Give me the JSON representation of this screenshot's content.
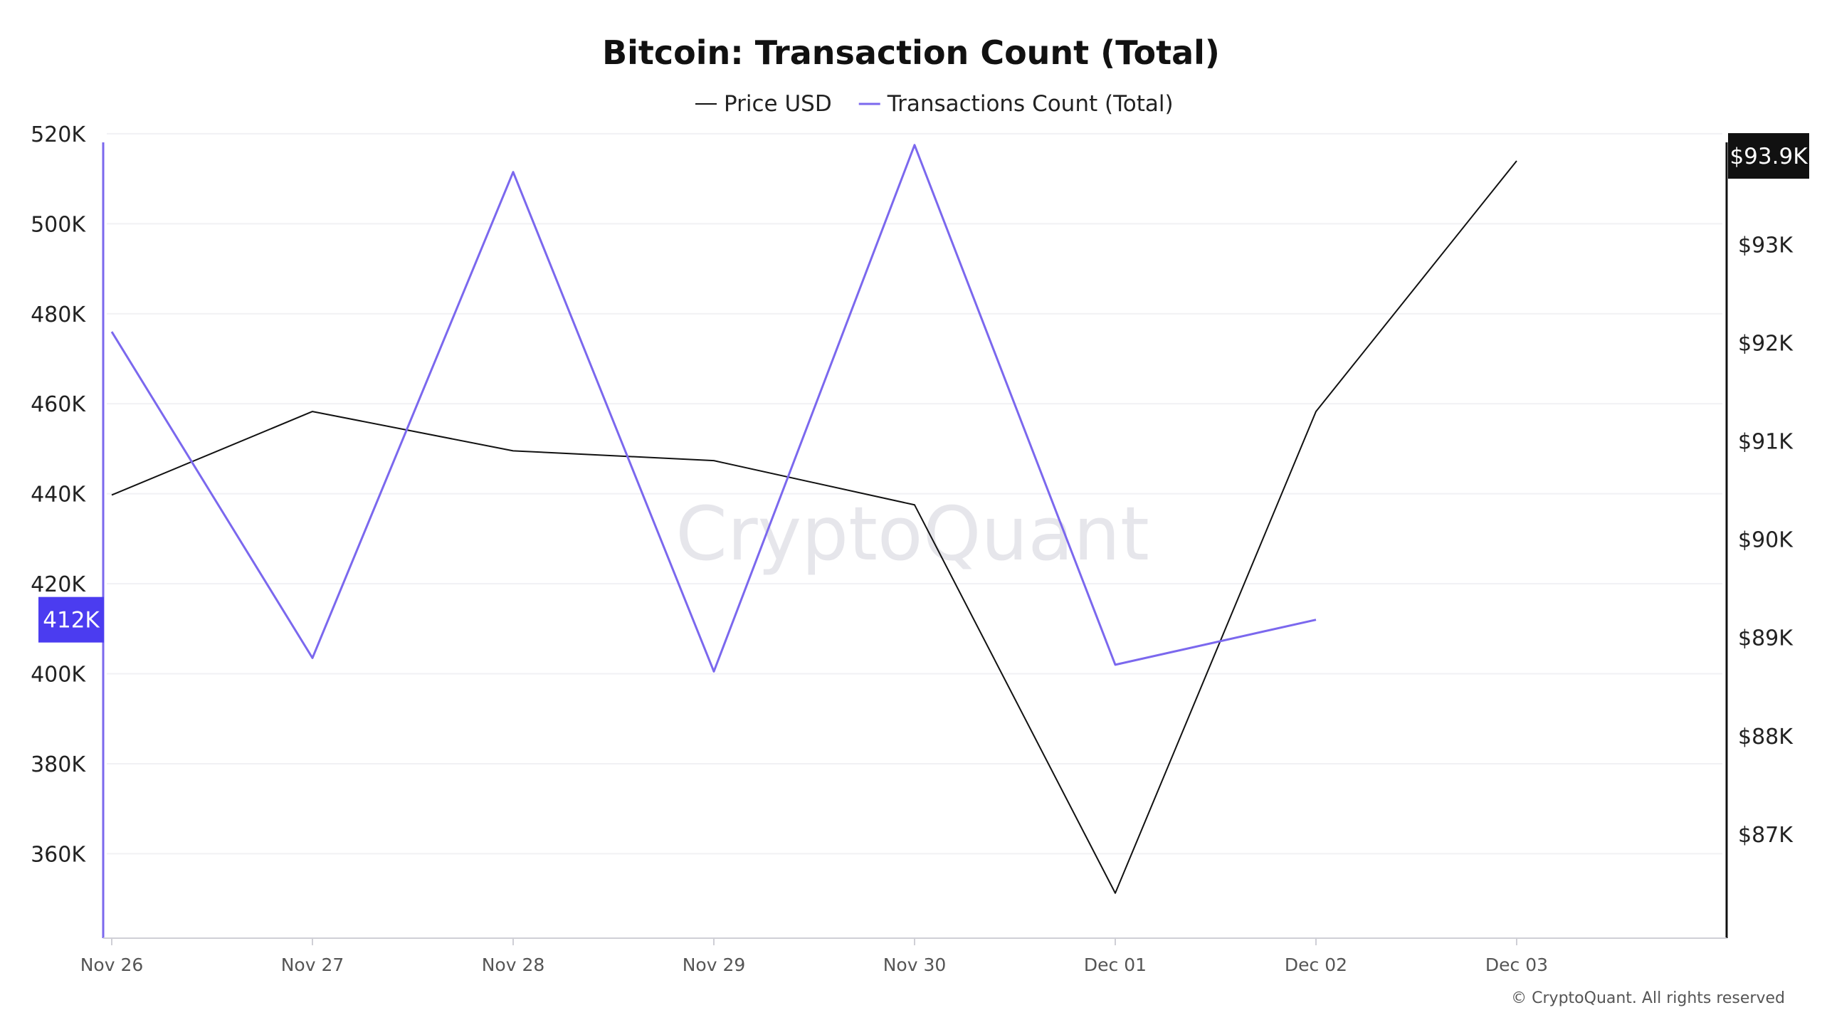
{
  "chart_data": {
    "type": "line",
    "title": "Bitcoin: Transaction Count (Total)",
    "categories": [
      "Nov 26",
      "Nov 27",
      "Nov 28",
      "Nov 29",
      "Nov 30",
      "Dec 01",
      "Dec 02",
      "Dec 03"
    ],
    "series": [
      {
        "name": "Price USD",
        "axis": "right",
        "color": "#111111",
        "values": [
          90450,
          91300,
          90900,
          90800,
          90350,
          86400,
          91300,
          93850
        ]
      },
      {
        "name": "Transactions Count (Total)",
        "axis": "left",
        "color": "#7b68ee",
        "values": [
          476000,
          403500,
          511500,
          400500,
          517500,
          402000,
          412000,
          null
        ]
      }
    ],
    "y_left": {
      "ticks": [
        360000,
        380000,
        400000,
        420000,
        440000,
        460000,
        480000,
        500000,
        520000
      ],
      "tick_labels": [
        "360K",
        "380K",
        "400K",
        "420K",
        "440K",
        "460K",
        "480K",
        "500K",
        "520K"
      ],
      "range": [
        342500,
        526000
      ]
    },
    "y_right": {
      "ticks": [
        87000,
        88000,
        89000,
        90000,
        91000,
        92000,
        93000
      ],
      "tick_labels": [
        "$87K",
        "$88K",
        "$89K",
        "$90K",
        "$91K",
        "$92K",
        "$93K"
      ],
      "range": [
        86000,
        94400
      ]
    },
    "badges": {
      "left": {
        "label": "412K",
        "value": 412000,
        "color": "#4b3cf0"
      },
      "right": {
        "label": "$93.9K",
        "value": 93900,
        "color": "#111111"
      }
    },
    "legend_position": "top-center",
    "grid": true,
    "watermark": "CryptoQuant",
    "copyright": "© CryptoQuant. All rights reserved"
  }
}
